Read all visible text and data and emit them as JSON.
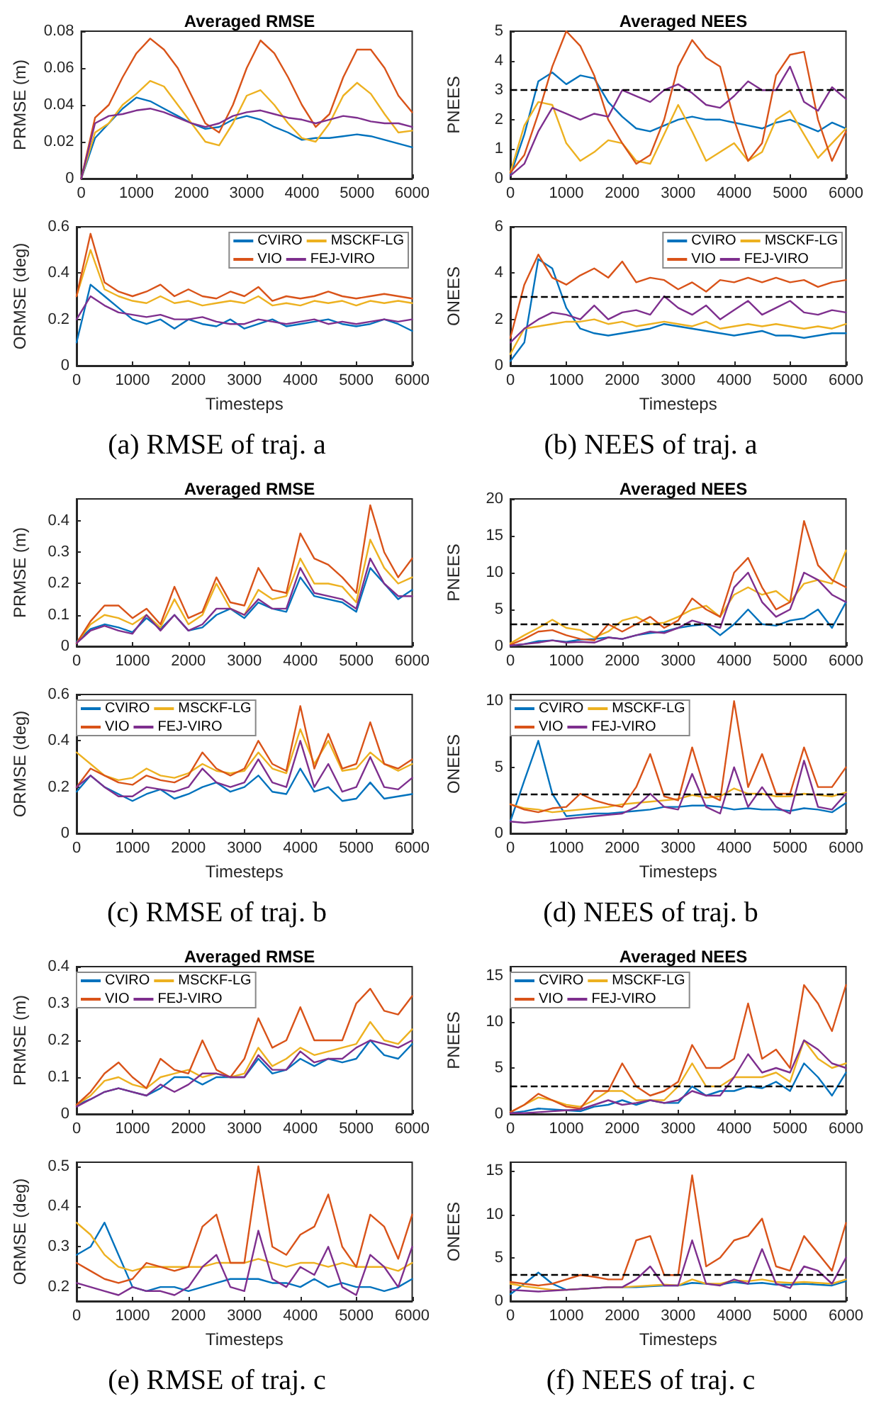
{
  "chart_data": [
    {
      "type": "line",
      "title": "Averaged RMSE",
      "ylabel": "PRMSE (m)",
      "marker": "none",
      "xlim": [
        0,
        6000
      ],
      "xticks": [
        0,
        1000,
        2000,
        3000,
        4000,
        5000,
        6000
      ],
      "ylim": [
        0,
        0.08
      ],
      "yticks": [
        0,
        0.02,
        0.04,
        0.06,
        0.08
      ],
      "x": [
        0,
        250,
        500,
        750,
        1000,
        1250,
        1500,
        1750,
        2000,
        2250,
        2500,
        2750,
        3000,
        3250,
        3500,
        3750,
        4000,
        4250,
        4500,
        4750,
        5000,
        5250,
        5500,
        5750,
        6000
      ],
      "series": [
        {
          "color": "#0072bd",
          "values": [
            0,
            0.022,
            0.03,
            0.038,
            0.044,
            0.042,
            0.038,
            0.034,
            0.03,
            0.027,
            0.028,
            0.032,
            0.034,
            0.032,
            0.028,
            0.025,
            0.021,
            0.022,
            0.022,
            0.023,
            0.024,
            0.023,
            0.021,
            0.019,
            0.017
          ]
        },
        {
          "color": "#edb120",
          "values": [
            0,
            0.025,
            0.03,
            0.04,
            0.046,
            0.053,
            0.05,
            0.04,
            0.03,
            0.02,
            0.018,
            0.03,
            0.045,
            0.048,
            0.04,
            0.03,
            0.022,
            0.02,
            0.03,
            0.045,
            0.052,
            0.046,
            0.035,
            0.025,
            0.026
          ]
        },
        {
          "color": "#d95319",
          "values": [
            0,
            0.033,
            0.04,
            0.055,
            0.068,
            0.076,
            0.07,
            0.06,
            0.045,
            0.03,
            0.025,
            0.04,
            0.06,
            0.075,
            0.068,
            0.055,
            0.04,
            0.028,
            0.035,
            0.055,
            0.07,
            0.07,
            0.06,
            0.045,
            0.036
          ]
        },
        {
          "color": "#7e2f8e",
          "values": [
            0,
            0.03,
            0.034,
            0.035,
            0.037,
            0.038,
            0.036,
            0.033,
            0.03,
            0.028,
            0.03,
            0.034,
            0.036,
            0.037,
            0.035,
            0.033,
            0.032,
            0.03,
            0.032,
            0.034,
            0.033,
            0.031,
            0.03,
            0.03,
            0.028
          ]
        }
      ]
    },
    {
      "type": "line",
      "title": "Averaged NEES",
      "ylabel": "PNEES",
      "marker": "none",
      "xlim": [
        0,
        6000
      ],
      "xticks": [
        0,
        1000,
        2000,
        3000,
        4000,
        5000,
        6000
      ],
      "ylim": [
        0,
        5
      ],
      "yticks": [
        0,
        1,
        2,
        3,
        4,
        5
      ],
      "ref_lines": [
        {
          "axis": "y",
          "value": 3,
          "color": "#000000",
          "line_style": "dashed"
        }
      ],
      "x": [
        0,
        250,
        500,
        750,
        1000,
        1250,
        1500,
        1750,
        2000,
        2250,
        2500,
        2750,
        3000,
        3250,
        3500,
        3750,
        4000,
        4250,
        4500,
        4750,
        5000,
        5250,
        5500,
        5750,
        6000
      ],
      "series": [
        {
          "color": "#0072bd",
          "values": [
            0.1,
            1.5,
            3.3,
            3.6,
            3.2,
            3.5,
            3.4,
            2.6,
            2.1,
            1.7,
            1.6,
            1.8,
            2.0,
            2.1,
            2.0,
            2.0,
            1.9,
            1.8,
            1.7,
            1.9,
            2.0,
            1.8,
            1.6,
            1.9,
            1.7
          ]
        },
        {
          "color": "#edb120",
          "values": [
            0.2,
            1.8,
            2.6,
            2.5,
            1.2,
            0.6,
            0.9,
            1.3,
            1.2,
            0.6,
            0.5,
            1.5,
            2.5,
            1.6,
            0.6,
            0.9,
            1.2,
            0.6,
            0.9,
            2.0,
            2.3,
            1.5,
            0.7,
            1.2,
            1.7
          ]
        },
        {
          "color": "#d95319",
          "values": [
            0.2,
            0.8,
            2.2,
            3.8,
            5.0,
            4.5,
            3.5,
            2.0,
            1.2,
            0.5,
            0.8,
            2.0,
            3.8,
            4.7,
            4.1,
            3.8,
            2.0,
            0.6,
            1.2,
            3.5,
            4.2,
            4.3,
            2.0,
            0.6,
            1.6
          ]
        },
        {
          "color": "#7e2f8e",
          "values": [
            0.1,
            0.5,
            1.6,
            2.4,
            2.2,
            2.0,
            2.2,
            2.1,
            3.0,
            2.8,
            2.6,
            3.0,
            3.2,
            2.9,
            2.5,
            2.4,
            2.8,
            3.3,
            3.0,
            3.0,
            3.8,
            2.6,
            2.3,
            3.1,
            2.7
          ]
        }
      ]
    },
    {
      "type": "line",
      "ylabel": "ORMSE (deg)",
      "xlabel": "Timesteps",
      "legend": "top right",
      "marker": "none",
      "annotations": [
        "(a) RMSE of traj. a"
      ],
      "xlim": [
        0,
        6000
      ],
      "xticks": [
        0,
        1000,
        2000,
        3000,
        4000,
        5000,
        6000
      ],
      "ylim": [
        0,
        0.6
      ],
      "yticks": [
        0,
        0.2,
        0.4,
        0.6
      ],
      "x": [
        0,
        250,
        500,
        750,
        1000,
        1250,
        1500,
        1750,
        2000,
        2250,
        2500,
        2750,
        3000,
        3250,
        3500,
        3750,
        4000,
        4250,
        4500,
        4750,
        5000,
        5250,
        5500,
        5750,
        6000
      ],
      "series": [
        {
          "name": "CVIRO",
          "color": "#0072bd",
          "values": [
            0.1,
            0.35,
            0.3,
            0.25,
            0.2,
            0.18,
            0.2,
            0.16,
            0.2,
            0.18,
            0.17,
            0.2,
            0.16,
            0.18,
            0.2,
            0.17,
            0.18,
            0.19,
            0.2,
            0.18,
            0.17,
            0.18,
            0.2,
            0.18,
            0.15
          ]
        },
        {
          "name": "MSCKF-LG",
          "color": "#edb120",
          "values": [
            0.3,
            0.5,
            0.33,
            0.3,
            0.28,
            0.27,
            0.3,
            0.27,
            0.28,
            0.26,
            0.27,
            0.28,
            0.27,
            0.3,
            0.26,
            0.27,
            0.26,
            0.28,
            0.27,
            0.28,
            0.26,
            0.28,
            0.27,
            0.28,
            0.27
          ]
        },
        {
          "name": "VIO",
          "color": "#d95319",
          "values": [
            0.3,
            0.57,
            0.36,
            0.32,
            0.3,
            0.32,
            0.35,
            0.3,
            0.33,
            0.3,
            0.29,
            0.32,
            0.3,
            0.34,
            0.28,
            0.3,
            0.29,
            0.3,
            0.32,
            0.3,
            0.29,
            0.3,
            0.31,
            0.3,
            0.29
          ]
        },
        {
          "name": "FEJ-VIRO",
          "color": "#7e2f8e",
          "values": [
            0.2,
            0.3,
            0.26,
            0.23,
            0.22,
            0.21,
            0.22,
            0.2,
            0.2,
            0.21,
            0.19,
            0.18,
            0.18,
            0.2,
            0.19,
            0.18,
            0.19,
            0.2,
            0.18,
            0.19,
            0.18,
            0.19,
            0.2,
            0.19,
            0.2
          ]
        }
      ]
    },
    {
      "type": "line",
      "ylabel": "ONEES",
      "xlabel": "Timesteps",
      "legend": "top right",
      "marker": "none",
      "annotations": [
        "(b) NEES of traj. a"
      ],
      "xlim": [
        0,
        6000
      ],
      "xticks": [
        0,
        1000,
        2000,
        3000,
        4000,
        5000,
        6000
      ],
      "ylim": [
        0,
        6
      ],
      "yticks": [
        0,
        2,
        4,
        6
      ],
      "ref_lines": [
        {
          "axis": "y",
          "value": 3,
          "color": "#000000",
          "line_style": "dashed"
        }
      ],
      "x": [
        0,
        250,
        500,
        750,
        1000,
        1250,
        1500,
        1750,
        2000,
        2250,
        2500,
        2750,
        3000,
        3250,
        3500,
        3750,
        4000,
        4250,
        4500,
        4750,
        5000,
        5250,
        5500,
        5750,
        6000
      ],
      "series": [
        {
          "name": "CVIRO",
          "color": "#0072bd",
          "values": [
            0.2,
            1.0,
            4.6,
            4.2,
            2.5,
            1.6,
            1.4,
            1.3,
            1.4,
            1.5,
            1.6,
            1.8,
            1.7,
            1.6,
            1.5,
            1.4,
            1.3,
            1.4,
            1.5,
            1.3,
            1.3,
            1.2,
            1.3,
            1.4,
            1.4
          ]
        },
        {
          "name": "MSCKF-LG",
          "color": "#edb120",
          "values": [
            0.5,
            1.6,
            1.7,
            1.8,
            1.9,
            1.9,
            2.0,
            1.8,
            1.9,
            1.7,
            1.8,
            1.9,
            1.8,
            1.7,
            1.9,
            1.6,
            1.7,
            1.8,
            1.7,
            1.8,
            1.7,
            1.6,
            1.7,
            1.6,
            1.8
          ]
        },
        {
          "name": "VIO",
          "color": "#d95319",
          "values": [
            1.2,
            3.5,
            4.8,
            3.8,
            3.5,
            3.9,
            4.2,
            3.8,
            4.5,
            3.6,
            3.8,
            3.7,
            3.3,
            3.6,
            3.2,
            3.7,
            3.6,
            3.8,
            3.6,
            3.8,
            3.6,
            3.7,
            3.4,
            3.6,
            3.7
          ]
        },
        {
          "name": "FEJ-VIRO",
          "color": "#7e2f8e",
          "values": [
            1.0,
            1.6,
            2.0,
            2.3,
            2.2,
            2.0,
            2.6,
            2.0,
            2.3,
            2.4,
            2.2,
            3.0,
            2.5,
            2.2,
            2.6,
            2.0,
            2.4,
            2.8,
            2.2,
            2.5,
            2.8,
            2.3,
            2.2,
            2.4,
            2.3
          ]
        }
      ]
    },
    {
      "type": "line",
      "title": "Averaged RMSE",
      "ylabel": "PRMSE (m)",
      "marker": "none",
      "xlim": [
        0,
        6000
      ],
      "xticks": [
        0,
        1000,
        2000,
        3000,
        4000,
        5000,
        6000
      ],
      "ylim": [
        0,
        0.47
      ],
      "yticks": [
        0,
        0.1,
        0.2,
        0.3,
        0.4
      ],
      "x": [
        0,
        250,
        500,
        750,
        1000,
        1250,
        1500,
        1750,
        2000,
        2250,
        2500,
        2750,
        3000,
        3250,
        3500,
        3750,
        4000,
        4250,
        4500,
        4750,
        5000,
        5250,
        5500,
        5750,
        6000
      ],
      "series": [
        {
          "color": "#0072bd",
          "values": [
            0.015,
            0.055,
            0.07,
            0.06,
            0.045,
            0.09,
            0.055,
            0.1,
            0.05,
            0.06,
            0.1,
            0.12,
            0.09,
            0.14,
            0.12,
            0.11,
            0.22,
            0.16,
            0.15,
            0.14,
            0.11,
            0.25,
            0.2,
            0.15,
            0.18
          ]
        },
        {
          "color": "#edb120",
          "values": [
            0.01,
            0.07,
            0.1,
            0.09,
            0.07,
            0.1,
            0.06,
            0.15,
            0.07,
            0.1,
            0.2,
            0.12,
            0.1,
            0.18,
            0.15,
            0.16,
            0.28,
            0.2,
            0.2,
            0.19,
            0.14,
            0.34,
            0.25,
            0.2,
            0.22
          ]
        },
        {
          "color": "#d95319",
          "values": [
            0.01,
            0.08,
            0.13,
            0.13,
            0.09,
            0.12,
            0.07,
            0.19,
            0.09,
            0.11,
            0.22,
            0.14,
            0.13,
            0.25,
            0.18,
            0.17,
            0.36,
            0.28,
            0.26,
            0.22,
            0.17,
            0.45,
            0.3,
            0.22,
            0.28
          ]
        },
        {
          "color": "#7e2f8e",
          "values": [
            0.01,
            0.05,
            0.065,
            0.05,
            0.04,
            0.1,
            0.05,
            0.1,
            0.05,
            0.07,
            0.12,
            0.12,
            0.1,
            0.15,
            0.12,
            0.12,
            0.25,
            0.17,
            0.16,
            0.15,
            0.12,
            0.28,
            0.2,
            0.16,
            0.16
          ]
        }
      ]
    },
    {
      "type": "line",
      "title": "Averaged NEES",
      "ylabel": "PNEES",
      "marker": "none",
      "xlim": [
        0,
        6000
      ],
      "xticks": [
        0,
        1000,
        2000,
        3000,
        4000,
        5000,
        6000
      ],
      "ylim": [
        0,
        20
      ],
      "yticks": [
        0,
        5,
        10,
        15,
        20
      ],
      "ref_lines": [
        {
          "axis": "y",
          "value": 3,
          "color": "#000000",
          "line_style": "dashed"
        }
      ],
      "x": [
        0,
        250,
        500,
        750,
        1000,
        1250,
        1500,
        1750,
        2000,
        2250,
        2500,
        2750,
        3000,
        3250,
        3500,
        3750,
        4000,
        4250,
        4500,
        4750,
        5000,
        5250,
        5500,
        5750,
        6000
      ],
      "series": [
        {
          "color": "#0072bd",
          "values": [
            0.1,
            0.3,
            0.7,
            0.8,
            0.6,
            0.9,
            1.0,
            1.2,
            1.0,
            1.5,
            1.8,
            2.0,
            2.5,
            2.8,
            3.0,
            1.5,
            3.0,
            5.0,
            3.0,
            2.8,
            3.5,
            3.8,
            5.0,
            2.5,
            6.0
          ]
        },
        {
          "color": "#edb120",
          "values": [
            0.4,
            1.5,
            2.5,
            3.6,
            2.5,
            2.2,
            1.2,
            2.0,
            3.5,
            4.0,
            3.0,
            3.2,
            4.0,
            5.0,
            5.5,
            4.0,
            7.0,
            8.0,
            7.0,
            7.5,
            6.0,
            8.5,
            9.0,
            8.5,
            13.0
          ]
        },
        {
          "color": "#d95319",
          "values": [
            0.2,
            1.0,
            2.0,
            2.2,
            1.5,
            1.0,
            0.8,
            3.0,
            2.0,
            3.0,
            4.0,
            2.5,
            3.5,
            6.5,
            5.0,
            4.0,
            10.0,
            12.0,
            8.0,
            5.0,
            6.0,
            17.0,
            11.0,
            9.0,
            8.0
          ]
        },
        {
          "color": "#7e2f8e",
          "values": [
            0.1,
            0.3,
            0.5,
            0.8,
            0.5,
            0.6,
            0.5,
            1.2,
            1.0,
            1.5,
            2.0,
            1.8,
            2.5,
            3.5,
            3.0,
            2.5,
            8.0,
            10.0,
            6.0,
            4.0,
            5.0,
            10.0,
            9.0,
            7.0,
            6.0
          ]
        }
      ]
    },
    {
      "type": "line",
      "ylabel": "ORMSE (deg)",
      "xlabel": "Timesteps",
      "legend": "top left",
      "marker": "none",
      "annotations": [
        "(c) RMSE of traj. b"
      ],
      "xlim": [
        0,
        6000
      ],
      "xticks": [
        0,
        1000,
        2000,
        3000,
        4000,
        5000,
        6000
      ],
      "ylim": [
        0,
        0.6
      ],
      "yticks": [
        0,
        0.2,
        0.4,
        0.6
      ],
      "x": [
        0,
        250,
        500,
        750,
        1000,
        1250,
        1500,
        1750,
        2000,
        2250,
        2500,
        2750,
        3000,
        3250,
        3500,
        3750,
        4000,
        4250,
        4500,
        4750,
        5000,
        5250,
        5500,
        5750,
        6000
      ],
      "series": [
        {
          "name": "CVIRO",
          "color": "#0072bd",
          "values": [
            0.18,
            0.25,
            0.2,
            0.17,
            0.14,
            0.17,
            0.19,
            0.15,
            0.17,
            0.2,
            0.22,
            0.18,
            0.2,
            0.25,
            0.18,
            0.17,
            0.28,
            0.18,
            0.2,
            0.14,
            0.15,
            0.22,
            0.15,
            0.16,
            0.17
          ]
        },
        {
          "name": "MSCKF-LG",
          "color": "#edb120",
          "values": [
            0.35,
            0.3,
            0.25,
            0.23,
            0.24,
            0.28,
            0.25,
            0.24,
            0.26,
            0.3,
            0.27,
            0.26,
            0.27,
            0.35,
            0.28,
            0.26,
            0.45,
            0.3,
            0.4,
            0.27,
            0.28,
            0.35,
            0.3,
            0.27,
            0.3
          ]
        },
        {
          "name": "VIO",
          "color": "#d95319",
          "values": [
            0.2,
            0.28,
            0.25,
            0.22,
            0.21,
            0.25,
            0.23,
            0.22,
            0.25,
            0.35,
            0.28,
            0.25,
            0.28,
            0.4,
            0.3,
            0.27,
            0.55,
            0.28,
            0.43,
            0.28,
            0.3,
            0.48,
            0.3,
            0.28,
            0.32
          ]
        },
        {
          "name": "FEJ-VIRO",
          "color": "#7e2f8e",
          "values": [
            0.2,
            0.25,
            0.2,
            0.16,
            0.16,
            0.2,
            0.19,
            0.18,
            0.2,
            0.28,
            0.22,
            0.2,
            0.22,
            0.32,
            0.22,
            0.2,
            0.4,
            0.2,
            0.3,
            0.18,
            0.2,
            0.33,
            0.2,
            0.19,
            0.24
          ]
        }
      ]
    },
    {
      "type": "line",
      "ylabel": "ONEES",
      "xlabel": "Timesteps",
      "legend": "top left",
      "marker": "none",
      "annotations": [
        "(d) NEES of traj. b"
      ],
      "xlim": [
        0,
        6000
      ],
      "xticks": [
        0,
        1000,
        2000,
        3000,
        4000,
        5000,
        6000
      ],
      "ylim": [
        0,
        10.5
      ],
      "yticks": [
        0,
        5,
        10
      ],
      "ref_lines": [
        {
          "axis": "y",
          "value": 3,
          "color": "#000000",
          "line_style": "dashed"
        }
      ],
      "x": [
        0,
        250,
        500,
        750,
        1000,
        1250,
        1500,
        1750,
        2000,
        2250,
        2500,
        2750,
        3000,
        3250,
        3500,
        3750,
        4000,
        4250,
        4500,
        4750,
        5000,
        5250,
        5500,
        5750,
        6000
      ],
      "series": [
        {
          "name": "CVIRO",
          "color": "#0072bd",
          "values": [
            0.9,
            4.0,
            7.0,
            3.0,
            1.3,
            1.4,
            1.5,
            1.5,
            1.6,
            1.7,
            1.8,
            2.0,
            2.0,
            2.1,
            2.1,
            2.0,
            1.8,
            1.9,
            1.8,
            1.8,
            1.7,
            1.9,
            1.8,
            1.6,
            2.3
          ]
        },
        {
          "name": "MSCKF-LG",
          "color": "#edb120",
          "values": [
            2.2,
            1.9,
            1.8,
            1.6,
            1.7,
            1.8,
            1.9,
            2.0,
            2.2,
            2.3,
            2.4,
            2.5,
            2.6,
            2.9,
            2.7,
            2.8,
            3.4,
            3.0,
            3.0,
            2.8,
            2.8,
            3.0,
            2.9,
            2.8,
            3.1
          ]
        },
        {
          "name": "VIO",
          "color": "#d95319",
          "values": [
            2.2,
            1.8,
            1.6,
            1.9,
            2.0,
            3.0,
            2.5,
            2.2,
            2.0,
            3.5,
            6.0,
            2.8,
            2.5,
            6.5,
            3.0,
            2.5,
            10.0,
            3.5,
            6.0,
            3.0,
            3.0,
            6.5,
            3.5,
            3.5,
            5.0
          ]
        },
        {
          "name": "FEJ-VIRO",
          "color": "#7e2f8e",
          "values": [
            0.9,
            0.8,
            0.9,
            1.0,
            1.1,
            1.2,
            1.3,
            1.4,
            1.5,
            2.0,
            3.0,
            2.0,
            1.8,
            4.5,
            2.0,
            1.5,
            5.0,
            2.0,
            3.5,
            2.0,
            1.5,
            5.5,
            2.0,
            1.8,
            3.0
          ]
        }
      ]
    },
    {
      "type": "line",
      "title": "Averaged RMSE",
      "ylabel": "PRMSE (m)",
      "legend": "top left",
      "marker": "none",
      "xlim": [
        0,
        6000
      ],
      "xticks": [
        0,
        1000,
        2000,
        3000,
        4000,
        5000,
        6000
      ],
      "ylim": [
        0,
        0.4
      ],
      "yticks": [
        0,
        0.1,
        0.2,
        0.3,
        0.4
      ],
      "x": [
        0,
        250,
        500,
        750,
        1000,
        1250,
        1500,
        1750,
        2000,
        2250,
        2500,
        2750,
        3000,
        3250,
        3500,
        3750,
        4000,
        4250,
        4500,
        4750,
        5000,
        5250,
        5500,
        5750,
        6000
      ],
      "series": [
        {
          "name": "CVIRO",
          "color": "#0072bd",
          "values": [
            0.025,
            0.04,
            0.06,
            0.07,
            0.06,
            0.05,
            0.07,
            0.1,
            0.1,
            0.08,
            0.1,
            0.1,
            0.1,
            0.15,
            0.11,
            0.12,
            0.15,
            0.13,
            0.15,
            0.14,
            0.15,
            0.2,
            0.16,
            0.15,
            0.19
          ]
        },
        {
          "name": "MSCKF-LG",
          "color": "#edb120",
          "values": [
            0.025,
            0.05,
            0.09,
            0.1,
            0.08,
            0.07,
            0.1,
            0.11,
            0.12,
            0.1,
            0.11,
            0.1,
            0.11,
            0.18,
            0.13,
            0.15,
            0.18,
            0.16,
            0.17,
            0.18,
            0.19,
            0.25,
            0.2,
            0.19,
            0.23
          ]
        },
        {
          "name": "VIO",
          "color": "#d95319",
          "values": [
            0.025,
            0.06,
            0.11,
            0.14,
            0.1,
            0.07,
            0.15,
            0.12,
            0.11,
            0.2,
            0.12,
            0.1,
            0.15,
            0.26,
            0.18,
            0.2,
            0.29,
            0.2,
            0.2,
            0.2,
            0.3,
            0.34,
            0.28,
            0.27,
            0.32
          ]
        },
        {
          "name": "FEJ-VIRO",
          "color": "#7e2f8e",
          "values": [
            0.02,
            0.04,
            0.06,
            0.07,
            0.06,
            0.05,
            0.08,
            0.06,
            0.08,
            0.11,
            0.11,
            0.1,
            0.1,
            0.16,
            0.12,
            0.12,
            0.17,
            0.14,
            0.15,
            0.15,
            0.18,
            0.2,
            0.19,
            0.18,
            0.2
          ]
        }
      ]
    },
    {
      "type": "line",
      "title": "Averaged NEES",
      "ylabel": "PNEES",
      "legend": "top left",
      "marker": "none",
      "xlim": [
        0,
        6000
      ],
      "xticks": [
        0,
        1000,
        2000,
        3000,
        4000,
        5000,
        6000
      ],
      "ylim": [
        0,
        16
      ],
      "yticks": [
        0,
        5,
        10,
        15
      ],
      "ref_lines": [
        {
          "axis": "y",
          "value": 3,
          "color": "#000000",
          "line_style": "dashed"
        }
      ],
      "x": [
        0,
        250,
        500,
        750,
        1000,
        1250,
        1500,
        1750,
        2000,
        2250,
        2500,
        2750,
        3000,
        3250,
        3500,
        3750,
        4000,
        4250,
        4500,
        4750,
        5000,
        5250,
        5500,
        5750,
        6000
      ],
      "series": [
        {
          "name": "CVIRO",
          "color": "#0072bd",
          "values": [
            0.1,
            0.3,
            0.6,
            0.5,
            0.4,
            0.3,
            0.8,
            1.0,
            1.5,
            1.0,
            1.5,
            1.2,
            1.2,
            3.0,
            2.0,
            2.5,
            2.5,
            3.0,
            2.8,
            3.5,
            2.5,
            5.5,
            4.0,
            2.0,
            4.5
          ]
        },
        {
          "name": "MSCKF-LG",
          "color": "#edb120",
          "values": [
            0.2,
            1.0,
            1.8,
            1.5,
            1.0,
            0.8,
            1.5,
            2.5,
            2.5,
            1.5,
            1.5,
            1.5,
            3.0,
            5.5,
            3.0,
            3.0,
            4.0,
            4.0,
            4.0,
            4.5,
            3.5,
            8.0,
            6.0,
            5.0,
            5.5
          ]
        },
        {
          "name": "VIO",
          "color": "#d95319",
          "values": [
            0.2,
            1.0,
            2.2,
            1.5,
            0.8,
            0.6,
            2.5,
            2.5,
            5.5,
            3.0,
            2.0,
            2.5,
            3.5,
            7.5,
            5.0,
            5.0,
            6.0,
            12.0,
            6.0,
            7.0,
            5.0,
            14.0,
            12.0,
            9.0,
            14.0
          ]
        },
        {
          "name": "FEJ-VIRO",
          "color": "#7e2f8e",
          "values": [
            0.1,
            0.1,
            0.2,
            0.3,
            0.4,
            0.5,
            1.0,
            1.5,
            1.0,
            1.2,
            1.5,
            1.2,
            1.5,
            2.5,
            2.0,
            2.0,
            4.0,
            6.5,
            4.5,
            5.0,
            4.5,
            8.0,
            7.0,
            5.5,
            5.0
          ]
        }
      ]
    },
    {
      "type": "line",
      "ylabel": "ORMSE (deg)",
      "xlabel": "Timesteps",
      "marker": "none",
      "annotations": [
        "(e) RMSE of traj. c"
      ],
      "xlim": [
        0,
        6000
      ],
      "xticks": [
        0,
        1000,
        2000,
        3000,
        4000,
        5000,
        6000
      ],
      "ylim": [
        0.165,
        0.51
      ],
      "yticks": [
        0.2,
        0.3,
        0.4,
        0.5
      ],
      "x": [
        0,
        250,
        500,
        750,
        1000,
        1250,
        1500,
        1750,
        2000,
        2250,
        2500,
        2750,
        3000,
        3250,
        3500,
        3750,
        4000,
        4250,
        4500,
        4750,
        5000,
        5250,
        5500,
        5750,
        6000
      ],
      "series": [
        {
          "color": "#0072bd",
          "values": [
            0.28,
            0.3,
            0.36,
            0.28,
            0.2,
            0.19,
            0.2,
            0.2,
            0.19,
            0.2,
            0.21,
            0.22,
            0.22,
            0.22,
            0.21,
            0.21,
            0.2,
            0.22,
            0.2,
            0.21,
            0.2,
            0.2,
            0.19,
            0.2,
            0.22
          ]
        },
        {
          "color": "#edb120",
          "values": [
            0.36,
            0.33,
            0.28,
            0.25,
            0.24,
            0.25,
            0.25,
            0.25,
            0.25,
            0.25,
            0.26,
            0.26,
            0.26,
            0.27,
            0.26,
            0.25,
            0.26,
            0.26,
            0.25,
            0.26,
            0.25,
            0.25,
            0.25,
            0.24,
            0.26
          ]
        },
        {
          "color": "#d95319",
          "values": [
            0.26,
            0.24,
            0.22,
            0.21,
            0.22,
            0.26,
            0.25,
            0.24,
            0.25,
            0.35,
            0.38,
            0.26,
            0.26,
            0.5,
            0.3,
            0.28,
            0.33,
            0.35,
            0.43,
            0.3,
            0.25,
            0.38,
            0.35,
            0.27,
            0.38
          ]
        },
        {
          "color": "#7e2f8e",
          "values": [
            0.21,
            0.2,
            0.19,
            0.18,
            0.2,
            0.19,
            0.19,
            0.18,
            0.2,
            0.25,
            0.28,
            0.2,
            0.19,
            0.34,
            0.22,
            0.2,
            0.25,
            0.23,
            0.3,
            0.2,
            0.18,
            0.28,
            0.25,
            0.2,
            0.3
          ]
        }
      ]
    },
    {
      "type": "line",
      "ylabel": "ONEES",
      "xlabel": "Timesteps",
      "marker": "none",
      "annotations": [
        "(f) NEES of traj. c"
      ],
      "xlim": [
        0,
        6000
      ],
      "xticks": [
        0,
        1000,
        2000,
        3000,
        4000,
        5000,
        6000
      ],
      "ylim": [
        0,
        16
      ],
      "yticks": [
        0,
        5,
        10,
        15
      ],
      "ref_lines": [
        {
          "axis": "y",
          "value": 3,
          "color": "#000000",
          "line_style": "dashed"
        }
      ],
      "x": [
        0,
        250,
        500,
        750,
        1000,
        1250,
        1500,
        1750,
        2000,
        2250,
        2500,
        2750,
        3000,
        3250,
        3500,
        3750,
        4000,
        4250,
        4500,
        4750,
        5000,
        5250,
        5500,
        5750,
        6000
      ],
      "series": [
        {
          "color": "#0072bd",
          "values": [
            0.8,
            2.0,
            3.3,
            2.0,
            1.3,
            1.4,
            1.5,
            1.6,
            1.6,
            1.6,
            1.7,
            1.8,
            1.8,
            2.1,
            2.0,
            1.9,
            2.2,
            2.0,
            2.1,
            1.9,
            1.9,
            2.0,
            1.9,
            1.8,
            2.3
          ]
        },
        {
          "color": "#edb120",
          "values": [
            2.0,
            1.7,
            1.5,
            1.3,
            1.3,
            1.4,
            1.5,
            1.6,
            1.6,
            1.7,
            1.8,
            1.9,
            1.8,
            2.5,
            2.0,
            2.0,
            2.4,
            2.3,
            2.5,
            2.2,
            2.1,
            2.2,
            2.1,
            2.0,
            2.5
          ]
        },
        {
          "color": "#d95319",
          "values": [
            2.2,
            2.0,
            1.8,
            2.0,
            2.5,
            3.0,
            2.8,
            2.5,
            2.5,
            7.0,
            7.5,
            3.0,
            3.0,
            14.5,
            4.0,
            5.0,
            7.0,
            7.5,
            9.5,
            4.0,
            3.5,
            7.5,
            5.5,
            3.5,
            9.0
          ]
        },
        {
          "color": "#7e2f8e",
          "values": [
            1.3,
            1.2,
            1.1,
            1.2,
            1.3,
            1.4,
            1.5,
            1.6,
            1.6,
            2.5,
            4.0,
            1.8,
            1.8,
            7.0,
            2.0,
            1.8,
            2.5,
            2.0,
            6.0,
            2.0,
            1.5,
            4.0,
            3.5,
            2.0,
            5.0
          ]
        }
      ]
    }
  ]
}
